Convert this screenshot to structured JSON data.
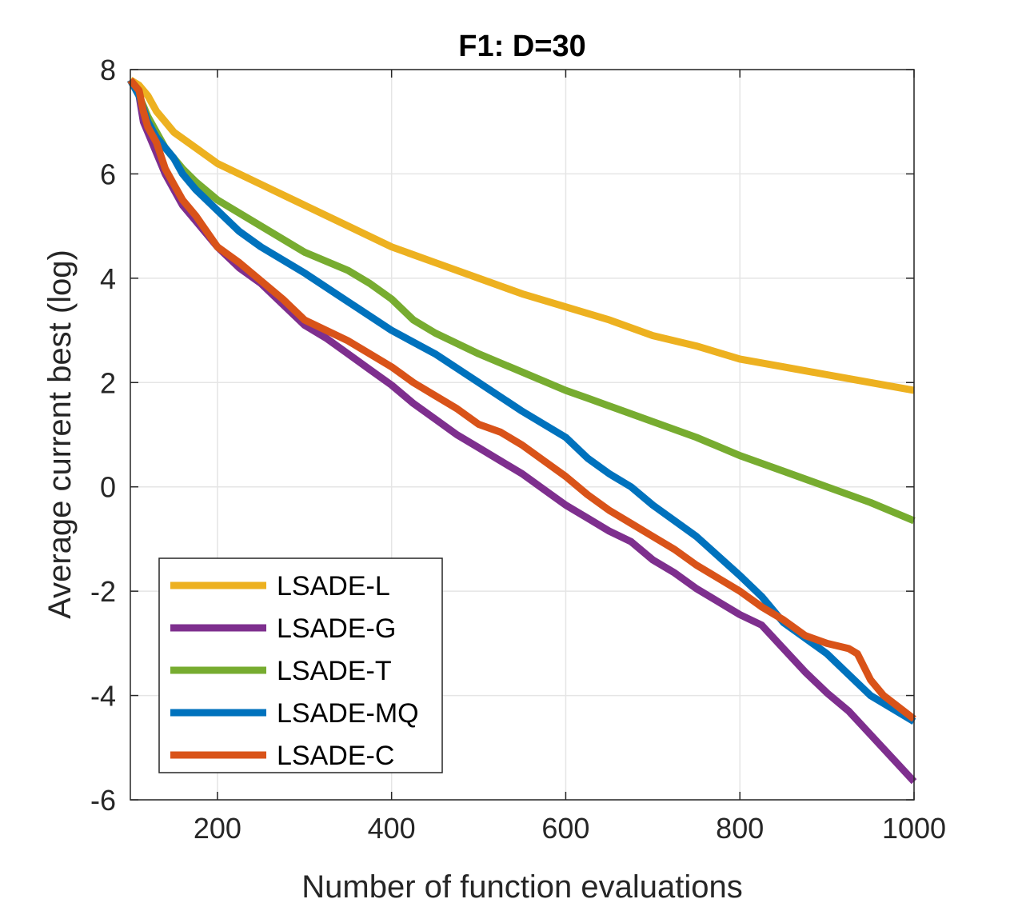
{
  "chart_data": {
    "type": "line",
    "title": "F1: D=30",
    "xlabel": "Number of function evaluations",
    "ylabel": "Average current best (log)",
    "xlim": [
      100,
      1000
    ],
    "ylim": [
      -6,
      8
    ],
    "xticks": [
      200,
      400,
      600,
      800,
      1000
    ],
    "xtick_labels": [
      "200",
      "400",
      "600",
      "800",
      "1000"
    ],
    "yticks": [
      -6,
      -4,
      -2,
      0,
      2,
      4,
      6,
      8
    ],
    "ytick_labels": [
      "-6",
      "-4",
      "-2",
      "0",
      "2",
      "4",
      "6",
      "8"
    ],
    "grid": true,
    "legend_position": "bottom-left",
    "series": [
      {
        "name": "LSADE-L",
        "color": "#EDB120",
        "x": [
          100,
          110,
          120,
          130,
          140,
          150,
          175,
          200,
          250,
          300,
          350,
          400,
          450,
          500,
          550,
          600,
          650,
          700,
          750,
          800,
          850,
          900,
          950,
          1000
        ],
        "values": [
          7.8,
          7.7,
          7.5,
          7.2,
          7.0,
          6.8,
          6.5,
          6.2,
          5.8,
          5.4,
          5.0,
          4.6,
          4.3,
          4.0,
          3.7,
          3.45,
          3.2,
          2.9,
          2.7,
          2.45,
          2.3,
          2.15,
          2.0,
          1.85
        ]
      },
      {
        "name": "LSADE-G",
        "color": "#7E2F8E",
        "x": [
          100,
          110,
          115,
          120,
          130,
          140,
          150,
          160,
          175,
          200,
          225,
          250,
          275,
          300,
          325,
          350,
          375,
          400,
          425,
          450,
          475,
          500,
          525,
          550,
          575,
          600,
          625,
          650,
          675,
          700,
          725,
          750,
          775,
          800,
          825,
          850,
          875,
          900,
          925,
          950,
          975,
          1000
        ],
        "values": [
          7.8,
          7.5,
          7.0,
          6.8,
          6.4,
          6.0,
          5.7,
          5.4,
          5.1,
          4.6,
          4.2,
          3.9,
          3.5,
          3.1,
          2.85,
          2.55,
          2.25,
          1.95,
          1.6,
          1.3,
          1.0,
          0.75,
          0.5,
          0.25,
          -0.05,
          -0.35,
          -0.6,
          -0.85,
          -1.05,
          -1.4,
          -1.65,
          -1.95,
          -2.2,
          -2.45,
          -2.65,
          -3.1,
          -3.55,
          -3.95,
          -4.3,
          -4.75,
          -5.2,
          -5.65
        ]
      },
      {
        "name": "LSADE-T",
        "color": "#77AC30",
        "x": [
          100,
          110,
          120,
          130,
          140,
          150,
          160,
          175,
          200,
          250,
          300,
          350,
          375,
          400,
          425,
          450,
          500,
          550,
          600,
          625,
          650,
          700,
          750,
          800,
          850,
          900,
          950,
          1000
        ],
        "values": [
          7.8,
          7.5,
          7.1,
          6.8,
          6.5,
          6.3,
          6.1,
          5.85,
          5.5,
          5.0,
          4.5,
          4.15,
          3.9,
          3.6,
          3.2,
          2.95,
          2.55,
          2.2,
          1.85,
          1.7,
          1.55,
          1.25,
          0.95,
          0.6,
          0.3,
          0.0,
          -0.3,
          -0.65
        ]
      },
      {
        "name": "LSADE-MQ",
        "color": "#0072BD",
        "x": [
          100,
          110,
          120,
          130,
          140,
          150,
          160,
          175,
          200,
          225,
          250,
          300,
          350,
          400,
          450,
          500,
          550,
          600,
          625,
          650,
          675,
          700,
          750,
          800,
          825,
          850,
          875,
          900,
          925,
          950,
          975,
          1000
        ],
        "values": [
          7.8,
          7.5,
          7.0,
          6.7,
          6.5,
          6.3,
          6.0,
          5.7,
          5.3,
          4.9,
          4.6,
          4.1,
          3.55,
          3.0,
          2.55,
          2.0,
          1.45,
          0.95,
          0.55,
          0.25,
          0.0,
          -0.35,
          -0.95,
          -1.7,
          -2.1,
          -2.6,
          -2.9,
          -3.2,
          -3.6,
          -4.0,
          -4.25,
          -4.5
        ]
      },
      {
        "name": "LSADE-C",
        "color": "#D95319",
        "x": [
          100,
          110,
          115,
          120,
          130,
          140,
          150,
          160,
          175,
          200,
          225,
          250,
          275,
          300,
          325,
          350,
          375,
          400,
          425,
          450,
          475,
          500,
          525,
          550,
          575,
          600,
          625,
          650,
          675,
          700,
          725,
          750,
          775,
          800,
          825,
          850,
          875,
          900,
          925,
          935,
          950,
          965,
          1000
        ],
        "values": [
          7.8,
          7.6,
          7.2,
          6.9,
          6.6,
          6.1,
          5.8,
          5.5,
          5.2,
          4.6,
          4.3,
          3.95,
          3.6,
          3.2,
          3.0,
          2.8,
          2.55,
          2.3,
          2.0,
          1.75,
          1.5,
          1.2,
          1.05,
          0.8,
          0.5,
          0.2,
          -0.15,
          -0.45,
          -0.7,
          -0.95,
          -1.2,
          -1.5,
          -1.75,
          -2.0,
          -2.3,
          -2.55,
          -2.85,
          -3.0,
          -3.1,
          -3.2,
          -3.7,
          -4.0,
          -4.45
        ]
      }
    ]
  }
}
